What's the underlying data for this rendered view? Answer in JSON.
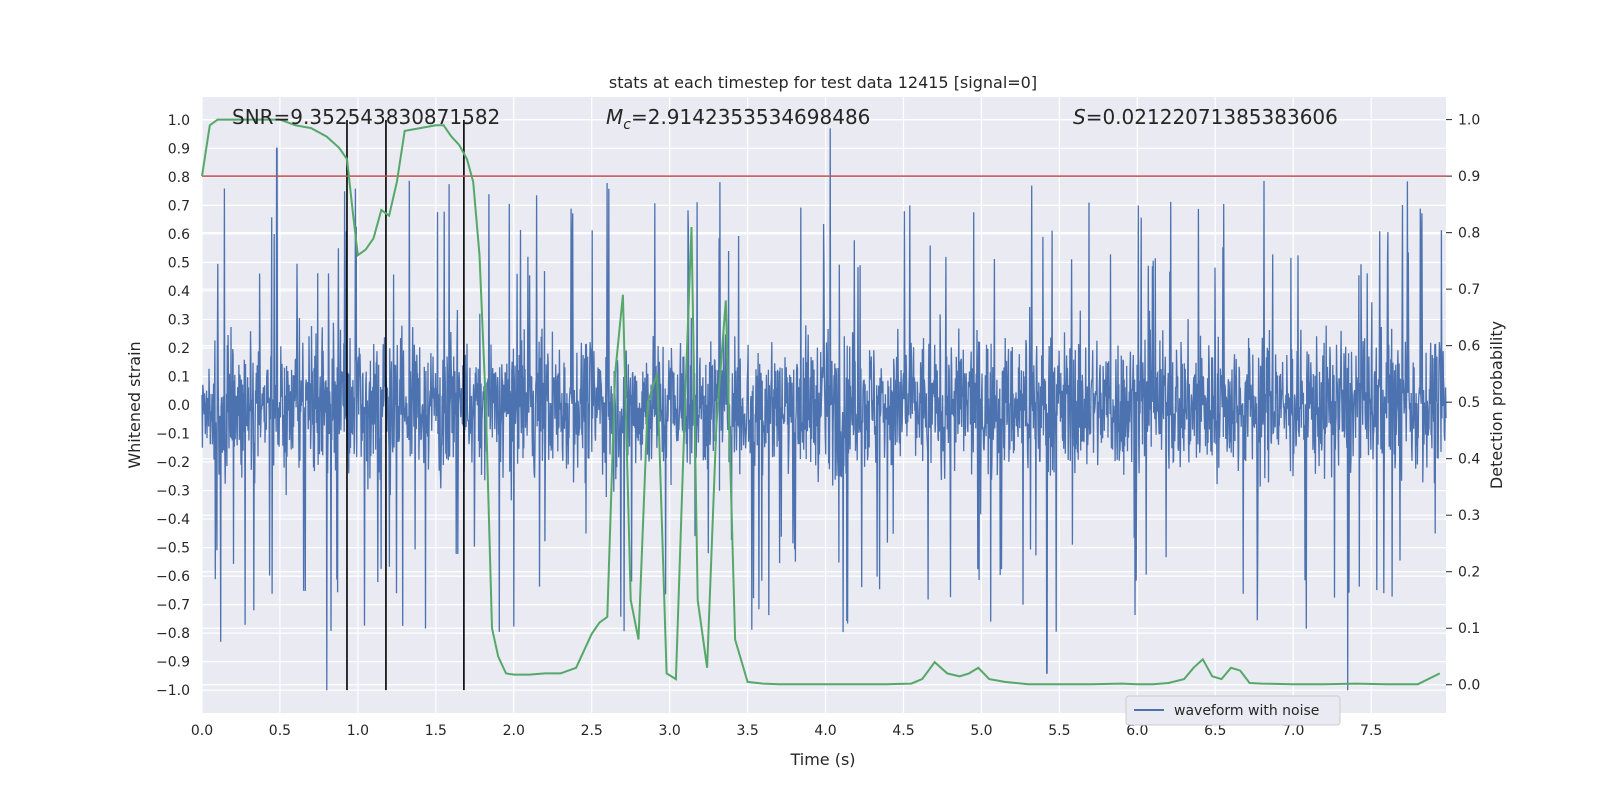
{
  "chart_data": {
    "type": "line",
    "title": "stats at each timestep for test data 12415 [signal=0]",
    "xlabel": "Time (s)",
    "ylabel": "Whitened strain",
    "y2label": "Detection probability",
    "xlim": [
      0.0,
      7.98
    ],
    "ylim": [
      -1.08,
      1.08
    ],
    "y2lim": [
      -0.05,
      1.04
    ],
    "xticks": [
      "0.0",
      "0.5",
      "1.0",
      "1.5",
      "2.0",
      "2.5",
      "3.0",
      "3.5",
      "4.0",
      "4.5",
      "5.0",
      "5.5",
      "6.0",
      "6.5",
      "7.0",
      "7.5"
    ],
    "yticks": [
      "−1.0",
      "−0.9",
      "−0.8",
      "−0.7",
      "−0.6",
      "−0.5",
      "−0.4",
      "−0.3",
      "−0.2",
      "−0.1",
      "0.0",
      "0.1",
      "0.2",
      "0.3",
      "0.4",
      "0.5",
      "0.6",
      "0.7",
      "0.8",
      "0.9",
      "1.0"
    ],
    "y2ticks": [
      "0.0",
      "0.1",
      "0.2",
      "0.3",
      "0.4",
      "0.5",
      "0.6",
      "0.7",
      "0.8",
      "0.9",
      "1.0"
    ],
    "grid": true,
    "legend": {
      "placement": "lower-right",
      "entries": [
        "waveform with noise"
      ]
    },
    "annotations": {
      "snr": "SNR=9.352543830871582",
      "mc_symbol": "M",
      "mc_sub": "c",
      "mc_value": "=2.9142353534698486",
      "s_symbol": "S",
      "s_value": "=0.02122071385383606"
    },
    "series": [
      {
        "name": "waveform with noise",
        "color": "#4c72b0",
        "axis": "left",
        "kind": "noise",
        "sample_rate_hz": 2048,
        "envelope": [
          0.6,
          -0.6
        ],
        "notable_peaks": [
          {
            "x": 0.48,
            "y": 0.9
          },
          {
            "x": 4.03,
            "y": 0.97
          },
          {
            "x": 0.8,
            "y": -1.0
          },
          {
            "x": 3.12,
            "y": 0.61
          },
          {
            "x": 5.42,
            "y": -0.94
          },
          {
            "x": 7.35,
            "y": -1.0
          },
          {
            "x": 0.12,
            "y": -0.83
          }
        ]
      },
      {
        "name": "detection probability",
        "color": "#55a868",
        "axis": "right",
        "x": [
          0.0,
          0.05,
          0.1,
          0.2,
          0.3,
          0.4,
          0.5,
          0.6,
          0.7,
          0.8,
          0.88,
          0.93,
          0.97,
          1.0,
          1.05,
          1.1,
          1.15,
          1.2,
          1.25,
          1.3,
          1.4,
          1.5,
          1.55,
          1.6,
          1.65,
          1.7,
          1.74,
          1.78,
          1.82,
          1.86,
          1.9,
          1.95,
          2.0,
          2.05,
          2.1,
          2.2,
          2.3,
          2.4,
          2.45,
          2.5,
          2.55,
          2.6,
          2.65,
          2.7,
          2.75,
          2.8,
          2.86,
          2.92,
          2.98,
          3.04,
          3.1,
          3.14,
          3.18,
          3.24,
          3.3,
          3.36,
          3.42,
          3.5,
          3.6,
          3.7,
          3.8,
          4.0,
          4.2,
          4.4,
          4.55,
          4.62,
          4.7,
          4.78,
          4.86,
          4.92,
          4.98,
          5.05,
          5.15,
          5.3,
          5.5,
          5.7,
          5.9,
          6.0,
          6.1,
          6.2,
          6.3,
          6.36,
          6.42,
          6.48,
          6.54,
          6.6,
          6.66,
          6.72,
          6.8,
          7.0,
          7.2,
          7.4,
          7.6,
          7.8,
          7.94
        ],
        "y": [
          0.9,
          0.99,
          1.0,
          1.0,
          1.0,
          1.0,
          1.0,
          0.99,
          0.985,
          0.97,
          0.95,
          0.93,
          0.83,
          0.76,
          0.77,
          0.79,
          0.84,
          0.83,
          0.89,
          0.98,
          0.985,
          0.99,
          0.99,
          0.97,
          0.955,
          0.93,
          0.89,
          0.76,
          0.5,
          0.1,
          0.05,
          0.02,
          0.018,
          0.018,
          0.018,
          0.02,
          0.02,
          0.03,
          0.06,
          0.09,
          0.11,
          0.12,
          0.55,
          0.69,
          0.15,
          0.08,
          0.5,
          0.55,
          0.02,
          0.01,
          0.51,
          0.81,
          0.15,
          0.03,
          0.46,
          0.68,
          0.08,
          0.005,
          0.002,
          0.001,
          0.001,
          0.001,
          0.001,
          0.001,
          0.002,
          0.01,
          0.04,
          0.02,
          0.015,
          0.02,
          0.03,
          0.01,
          0.005,
          0.001,
          0.001,
          0.001,
          0.002,
          0.001,
          0.001,
          0.003,
          0.01,
          0.03,
          0.045,
          0.015,
          0.01,
          0.03,
          0.025,
          0.003,
          0.002,
          0.001,
          0.001,
          0.002,
          0.001,
          0.001,
          0.02
        ]
      },
      {
        "name": "threshold",
        "color": "#c44e52",
        "axis": "right",
        "y": [
          0.9
        ]
      }
    ],
    "vertical_markers": {
      "color": "#000000",
      "x": [
        0.93,
        1.18,
        1.68
      ],
      "y_range": [
        -1.0,
        1.0
      ]
    }
  }
}
